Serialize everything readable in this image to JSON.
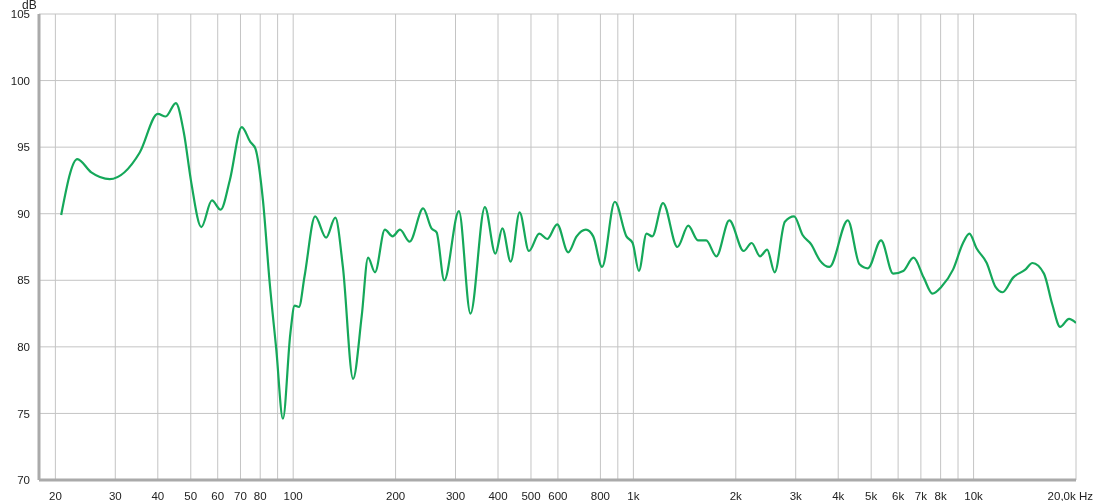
{
  "chart_data": {
    "type": "line",
    "ylabel": "dB",
    "log": "x",
    "grid": true,
    "color": "#15a85a",
    "xlim": [
      17.9,
      20000
    ],
    "ylim": [
      70,
      105
    ],
    "xticks": [
      20,
      30,
      40,
      50,
      60,
      70,
      80,
      {
        "value": 90,
        "label": null
      },
      100,
      200,
      300,
      400,
      500,
      600,
      800,
      {
        "value": 900,
        "label": null
      },
      {
        "value": 1000,
        "label": "1k"
      },
      {
        "value": 2000,
        "label": "2k"
      },
      {
        "value": 3000,
        "label": "3k"
      },
      {
        "value": 4000,
        "label": "4k"
      },
      {
        "value": 5000,
        "label": "5k"
      },
      {
        "value": 6000,
        "label": "6k"
      },
      {
        "value": 7000,
        "label": "7k"
      },
      {
        "value": 8000,
        "label": "8k"
      },
      {
        "value": 9000,
        "label": null
      },
      {
        "value": 10000,
        "label": "10k"
      },
      {
        "value": 20000,
        "label": "20,0k Hz"
      }
    ],
    "yticks": [
      70,
      75,
      80,
      85,
      90,
      95,
      100,
      105
    ],
    "x": [
      20.8,
      23.2,
      25.5,
      28.9,
      35.4,
      40.0,
      42.2,
      45.2,
      47.7,
      50.2,
      53.7,
      57.7,
      61.2,
      65.1,
      70.6,
      74.8,
      77.4,
      81.5,
      85.3,
      89.2,
      93.3,
      98.1,
      101,
      104,
      108,
      116,
      125,
      133,
      140,
      150,
      159,
      166,
      174,
      186,
      196,
      206,
      220,
      241,
      255,
      264,
      278,
      307,
      332,
      366,
      393,
      412,
      436,
      463,
      493,
      529,
      558,
      597,
      643,
      681,
      725,
      762,
      809,
      882,
      954,
      995,
      1038,
      1093,
      1136,
      1222,
      1347,
      1450,
      1548,
      1637,
      1754,
      1914,
      2109,
      2226,
      2357,
      2472,
      2603,
      2788,
      2968,
      3143,
      3332,
      3531,
      3770,
      4268,
      4620,
      4890,
      5345,
      5800,
      6210,
      6660,
      7135,
      7570,
      8034,
      8700,
      9310,
      9720,
      10200,
      10930,
      11600,
      12170,
      13070,
      14190,
      14900,
      16100,
      17030,
      17960,
      19080,
      20000
    ],
    "values": [
      89.9,
      94.1,
      93.1,
      92.6,
      94.6,
      97.5,
      97.3,
      98.3,
      96.1,
      92.3,
      89.0,
      91.0,
      90.3,
      92.5,
      96.5,
      95.4,
      94.9,
      91.0,
      84.8,
      79.8,
      74.6,
      81.0,
      83.1,
      83.0,
      85.3,
      89.8,
      88.2,
      89.7,
      86.0,
      77.6,
      82.3,
      86.7,
      85.6,
      88.8,
      88.3,
      88.8,
      87.9,
      90.4,
      88.9,
      88.6,
      85.0,
      90.2,
      82.5,
      90.5,
      87.0,
      88.9,
      86.4,
      90.1,
      87.2,
      88.5,
      88.1,
      89.2,
      87.1,
      88.3,
      88.8,
      88.3,
      86.0,
      90.9,
      88.3,
      87.8,
      85.7,
      88.5,
      88.3,
      90.8,
      87.5,
      89.1,
      88.0,
      88.0,
      86.8,
      89.5,
      87.2,
      87.8,
      86.8,
      87.3,
      85.6,
      89.4,
      89.8,
      88.4,
      87.7,
      86.5,
      86.0,
      89.5,
      86.2,
      85.9,
      88.0,
      85.5,
      85.7,
      86.7,
      85.2,
      84.0,
      84.5,
      85.8,
      87.8,
      88.5,
      87.4,
      86.3,
      84.5,
      84.1,
      85.2,
      85.8,
      86.3,
      85.5,
      83.2,
      81.5,
      82.1,
      81.8
    ]
  }
}
